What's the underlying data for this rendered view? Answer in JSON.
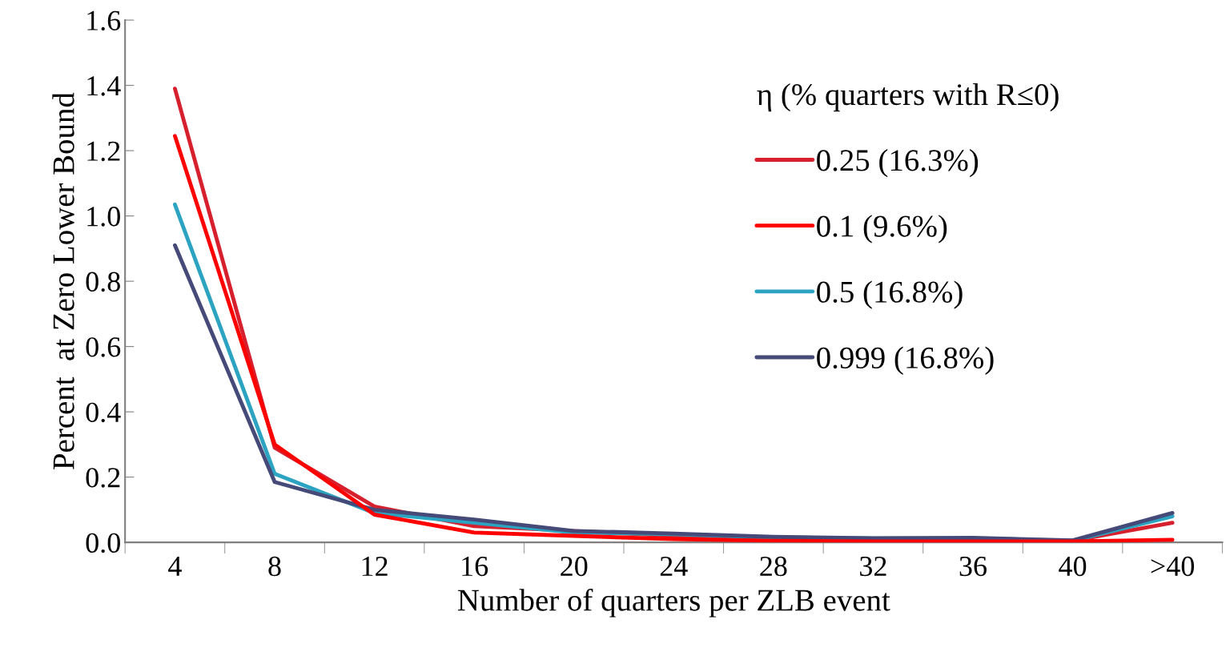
{
  "chart_data": {
    "type": "line",
    "xlabel": "Number of quarters per ZLB event",
    "ylabel": "Percent  at Zero Lower Bound",
    "legend_title": "η (% quarters with R≤0)",
    "categories": [
      "4",
      "8",
      "12",
      "16",
      "20",
      "24",
      "28",
      "32",
      "36",
      "40",
      ">40"
    ],
    "series": [
      {
        "name": "0.25 (16.3%)",
        "color": "#d7202e",
        "values": [
          1.39,
          0.29,
          0.11,
          0.05,
          0.035,
          0.02,
          0.01,
          0.005,
          0.005,
          0.005,
          0.06
        ]
      },
      {
        "name": "0.1 (9.6%)",
        "color": "#ff0000",
        "values": [
          1.245,
          0.3,
          0.085,
          0.03,
          0.02,
          0.01,
          0.005,
          0.003,
          0.003,
          0.003,
          0.008
        ]
      },
      {
        "name": "0.5 (16.8%)",
        "color": "#2ba3c1",
        "values": [
          1.035,
          0.21,
          0.09,
          0.06,
          0.03,
          0.025,
          0.015,
          0.012,
          0.012,
          0.005,
          0.08
        ]
      },
      {
        "name": "0.999 (16.8%)",
        "color": "#464a78",
        "values": [
          0.91,
          0.185,
          0.1,
          0.07,
          0.035,
          0.027,
          0.017,
          0.013,
          0.014,
          0.006,
          0.09
        ]
      }
    ],
    "ylim": [
      0,
      1.6
    ],
    "yticks": [
      {
        "value": 0,
        "label": "0.0"
      },
      {
        "value": 0.2,
        "label": "0.2"
      },
      {
        "value": 0.4,
        "label": "0.4"
      },
      {
        "value": 0.6,
        "label": "0.6"
      },
      {
        "value": 0.8,
        "label": "0.8"
      },
      {
        "value": 1.0,
        "label": "1.0"
      },
      {
        "value": 1.2,
        "label": "1.2"
      },
      {
        "value": 1.4,
        "label": "1.4"
      },
      {
        "value": 1.6,
        "label": "1.6"
      }
    ],
    "grid": false,
    "legend": "right",
    "marker": "none",
    "line_style": "solid"
  }
}
